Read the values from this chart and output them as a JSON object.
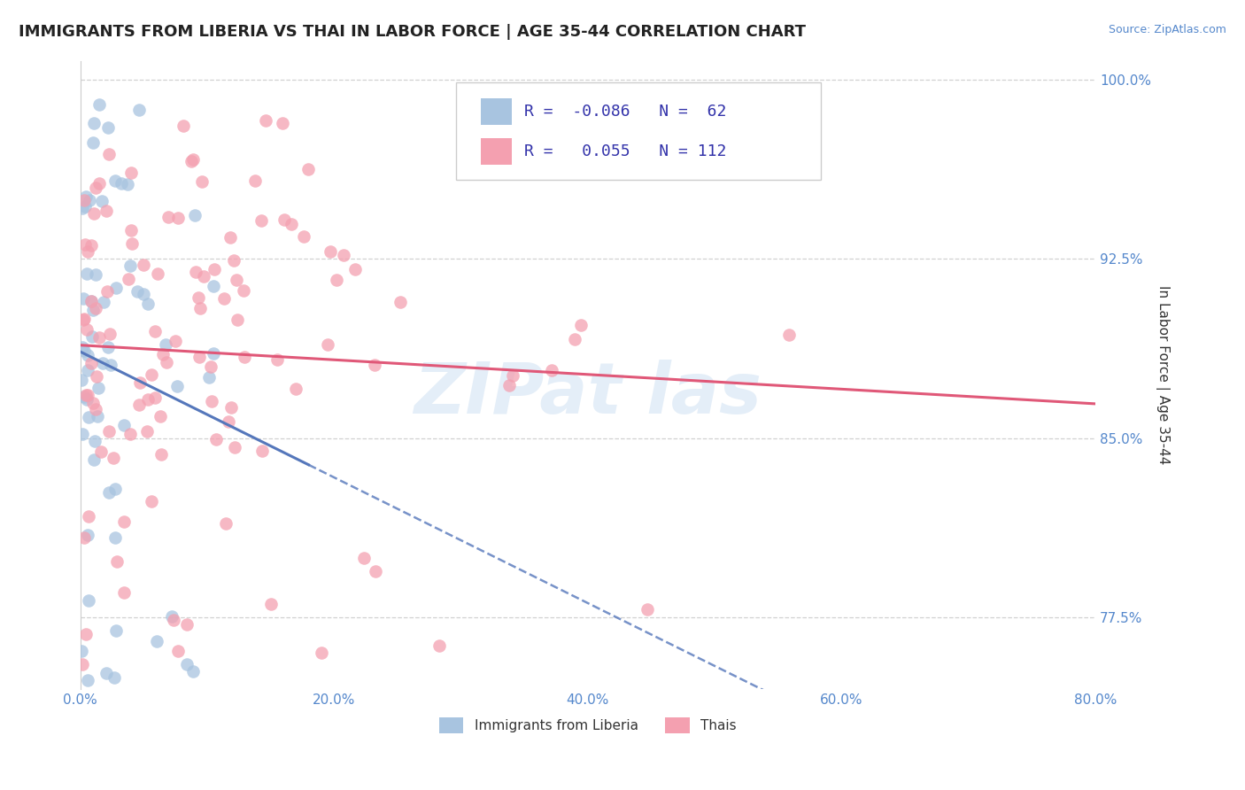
{
  "title": "IMMIGRANTS FROM LIBERIA VS THAI IN LABOR FORCE | AGE 35-44 CORRELATION CHART",
  "source": "Source: ZipAtlas.com",
  "ylabel": "In Labor Force | Age 35-44",
  "xlim": [
    0.0,
    0.8
  ],
  "ylim": [
    0.745,
    1.008
  ],
  "xticks": [
    0.0,
    0.2,
    0.4,
    0.6,
    0.8
  ],
  "xtick_labels": [
    "0.0%",
    "20.0%",
    "40.0%",
    "60.0%",
    "80.0%"
  ],
  "yticks": [
    0.775,
    0.85,
    0.925,
    1.0
  ],
  "ytick_labels": [
    "77.5%",
    "85.0%",
    "92.5%",
    "100.0%"
  ],
  "liberia_R": -0.086,
  "liberia_N": 62,
  "thai_R": 0.055,
  "thai_N": 112,
  "liberia_color": "#a8c4e0",
  "thai_color": "#f4a0b0",
  "liberia_trend_color": "#5577bb",
  "thai_trend_color": "#e05878",
  "background_color": "#ffffff",
  "grid_color": "#cccccc",
  "title_fontsize": 13,
  "axis_label_fontsize": 11,
  "tick_fontsize": 11,
  "legend_fontsize": 13,
  "seed": 42
}
